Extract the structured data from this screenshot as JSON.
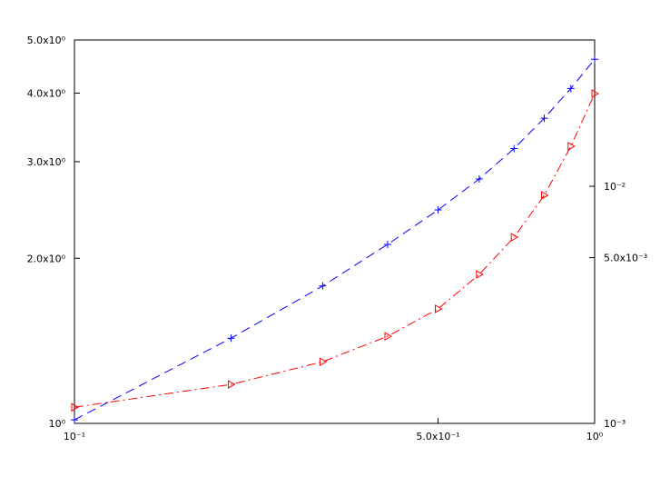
{
  "chart_data": {
    "type": "line",
    "x": [
      0.1,
      0.2,
      0.3,
      0.4,
      0.5,
      0.6,
      0.7,
      0.8,
      0.9,
      1.0
    ],
    "xscale": "log",
    "yscale": "log",
    "y2scale": "log",
    "xlim": [
      0.1,
      1.0
    ],
    "xticks": [
      {
        "value": 0.1,
        "label": "10⁻¹"
      },
      {
        "value": 0.5,
        "label": "5.0x10⁻¹"
      },
      {
        "value": 1.0,
        "label": "10⁰"
      }
    ],
    "ylim": [
      1.0,
      5.0
    ],
    "yticks": [
      {
        "value": 1.0,
        "label": "10⁰"
      },
      {
        "value": 2.0,
        "label": "2.0x10⁰"
      },
      {
        "value": 3.0,
        "label": "3.0x10⁰"
      },
      {
        "value": 4.0,
        "label": "4.0x10⁰"
      },
      {
        "value": 5.0,
        "label": "5.0x10⁰"
      }
    ],
    "y2lim": [
      0.001,
      0.0414
    ],
    "y2ticks": [
      {
        "value": 0.001,
        "label": "10⁻³"
      },
      {
        "value": 0.005,
        "label": "5.0x10⁻³"
      },
      {
        "value": 0.01,
        "label": "10⁻²"
      }
    ],
    "series": [
      {
        "color": "#0000ff",
        "marker": "plus",
        "dash": "10 6",
        "values": [
          1.015,
          1.43,
          1.78,
          2.12,
          2.45,
          2.79,
          3.17,
          3.6,
          4.08,
          4.61
        ]
      },
      {
        "color": "#ff0000",
        "marker": "triangle",
        "dash": "10 4 2 4",
        "axis": "y2",
        "values": [
          0.00117,
          0.00146,
          0.00182,
          0.00233,
          0.00304,
          0.00425,
          0.0061,
          0.00916,
          0.01475,
          0.0246
        ]
      }
    ]
  }
}
